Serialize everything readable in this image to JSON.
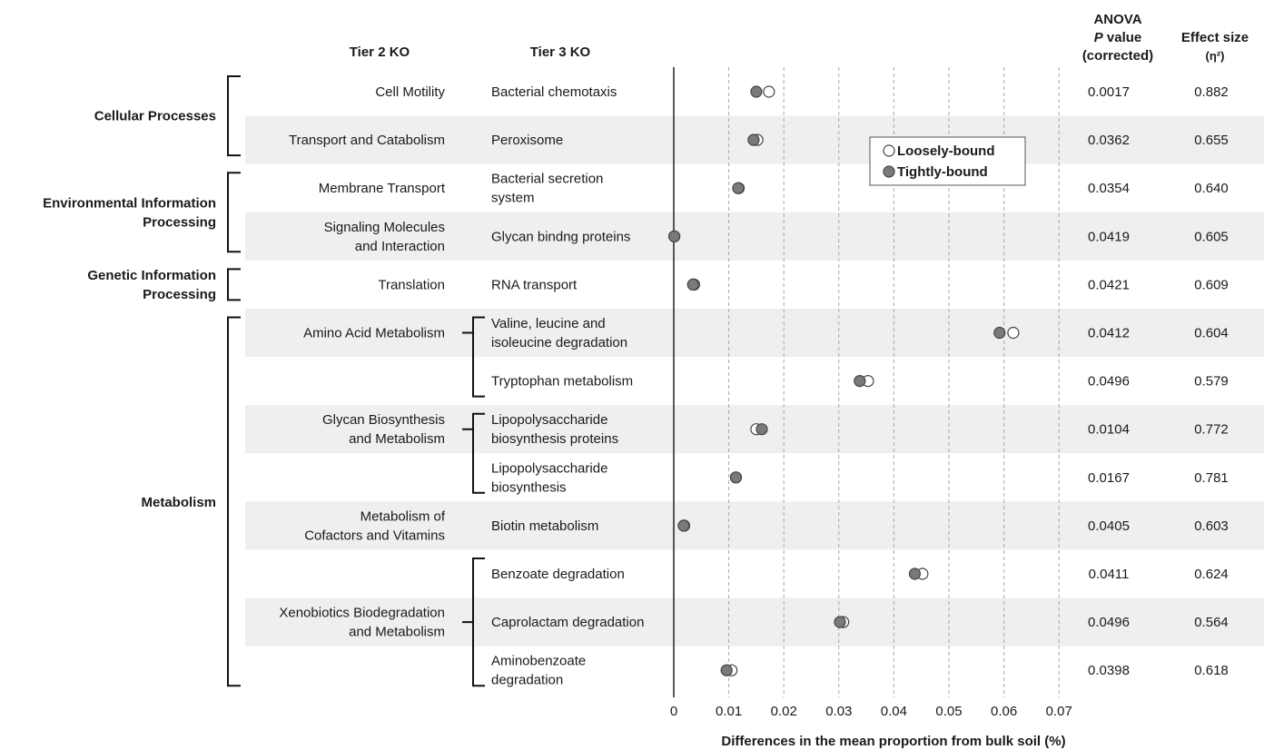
{
  "headers": {
    "tier2": "Tier 2 KO",
    "tier3": "Tier 3 KO",
    "anova_line1": "ANOVA",
    "anova_line2_italic": "P",
    "anova_line2_rest": " value",
    "anova_line3": "(corrected)",
    "effect_line1": "Effect size",
    "effect_line2": "(η²)"
  },
  "tier1_groups": [
    {
      "lines": [
        "Cellular Processes"
      ]
    },
    {
      "lines": [
        "Environmental Information",
        "Processing"
      ]
    },
    {
      "lines": [
        "Genetic Information",
        "Processing"
      ]
    },
    {
      "lines": [
        "Metabolism"
      ]
    }
  ],
  "tier2_labels": [
    {
      "lines": [
        "Cell Motility"
      ]
    },
    {
      "lines": [
        "Transport and Catabolism"
      ]
    },
    {
      "lines": [
        "Membrane Transport"
      ]
    },
    {
      "lines": [
        "Signaling Molecules",
        "and Interaction"
      ]
    },
    {
      "lines": [
        "Translation"
      ]
    },
    {
      "lines": [
        "Amino Acid Metabolism"
      ]
    },
    {
      "lines": [
        "Glycan Biosynthesis",
        "and Metabolism"
      ]
    },
    {
      "lines": [
        "Metabolism of",
        "Cofactors and Vitamins"
      ]
    },
    {
      "lines": [
        "Xenobiotics Biodegradation",
        "and Metabolism"
      ]
    }
  ],
  "legend": {
    "loosely": "Loosely-bound",
    "tightly": "Tightly-bound"
  },
  "colors": {
    "band": "#efefef",
    "loosely_fill": "#ffffff",
    "tightly_fill": "#7a7a7a",
    "marker_stroke": "#444444",
    "grid": "#aaaaaa"
  },
  "chart_data": {
    "type": "scatter",
    "xlabel": "Differences in the mean proportion from bulk soil (%)",
    "xlim": [
      0,
      0.07
    ],
    "xticks": [
      "0",
      "0.01",
      "0.02",
      "0.03",
      "0.04",
      "0.05",
      "0.06",
      "0.07"
    ],
    "grid": "vertical dashed",
    "legend_position": "top-right",
    "rows": [
      {
        "tier3": [
          "Bacterial chemotaxis"
        ],
        "loosely": 0.0173,
        "tightly": 0.015,
        "p": "0.0017",
        "eta": "0.882"
      },
      {
        "tier3": [
          "Peroxisome"
        ],
        "loosely": 0.0152,
        "tightly": 0.0145,
        "p": "0.0362",
        "eta": "0.655"
      },
      {
        "tier3": [
          "Bacterial secretion",
          "system"
        ],
        "loosely": 0.0118,
        "tightly": 0.0117,
        "p": "0.0354",
        "eta": "0.640"
      },
      {
        "tier3": [
          "Glycan bindng proteins"
        ],
        "loosely": 0.0001,
        "tightly": 0.0001,
        "p": "0.0419",
        "eta": "0.605"
      },
      {
        "tier3": [
          "RNA transport"
        ],
        "loosely": 0.0037,
        "tightly": 0.0035,
        "p": "0.0421",
        "eta": "0.609"
      },
      {
        "tier3": [
          "Valine, leucine and",
          "isoleucine degradation"
        ],
        "loosely": 0.0617,
        "tightly": 0.0592,
        "p": "0.0412",
        "eta": "0.604"
      },
      {
        "tier3": [
          "Tryptophan metabolism"
        ],
        "loosely": 0.0353,
        "tightly": 0.0338,
        "p": "0.0496",
        "eta": "0.579"
      },
      {
        "tier3": [
          "Lipopolysaccharide",
          "biosynthesis proteins"
        ],
        "loosely": 0.015,
        "tightly": 0.016,
        "p": "0.0104",
        "eta": "0.772"
      },
      {
        "tier3": [
          "Lipopolysaccharide",
          "biosynthesis"
        ],
        "loosely": 0.0113,
        "tightly": 0.0113,
        "p": "0.0167",
        "eta": "0.781"
      },
      {
        "tier3": [
          "Biotin metabolism"
        ],
        "loosely": 0.0019,
        "tightly": 0.0018,
        "p": "0.0405",
        "eta": "0.603"
      },
      {
        "tier3": [
          "Benzoate degradation"
        ],
        "loosely": 0.0452,
        "tightly": 0.0438,
        "p": "0.0411",
        "eta": "0.624"
      },
      {
        "tier3": [
          "Caprolactam degradation"
        ],
        "loosely": 0.0308,
        "tightly": 0.0302,
        "p": "0.0496",
        "eta": "0.564"
      },
      {
        "tier3": [
          "Aminobenzoate",
          "degradation"
        ],
        "loosely": 0.0105,
        "tightly": 0.0096,
        "p": "0.0398",
        "eta": "0.618"
      }
    ]
  }
}
